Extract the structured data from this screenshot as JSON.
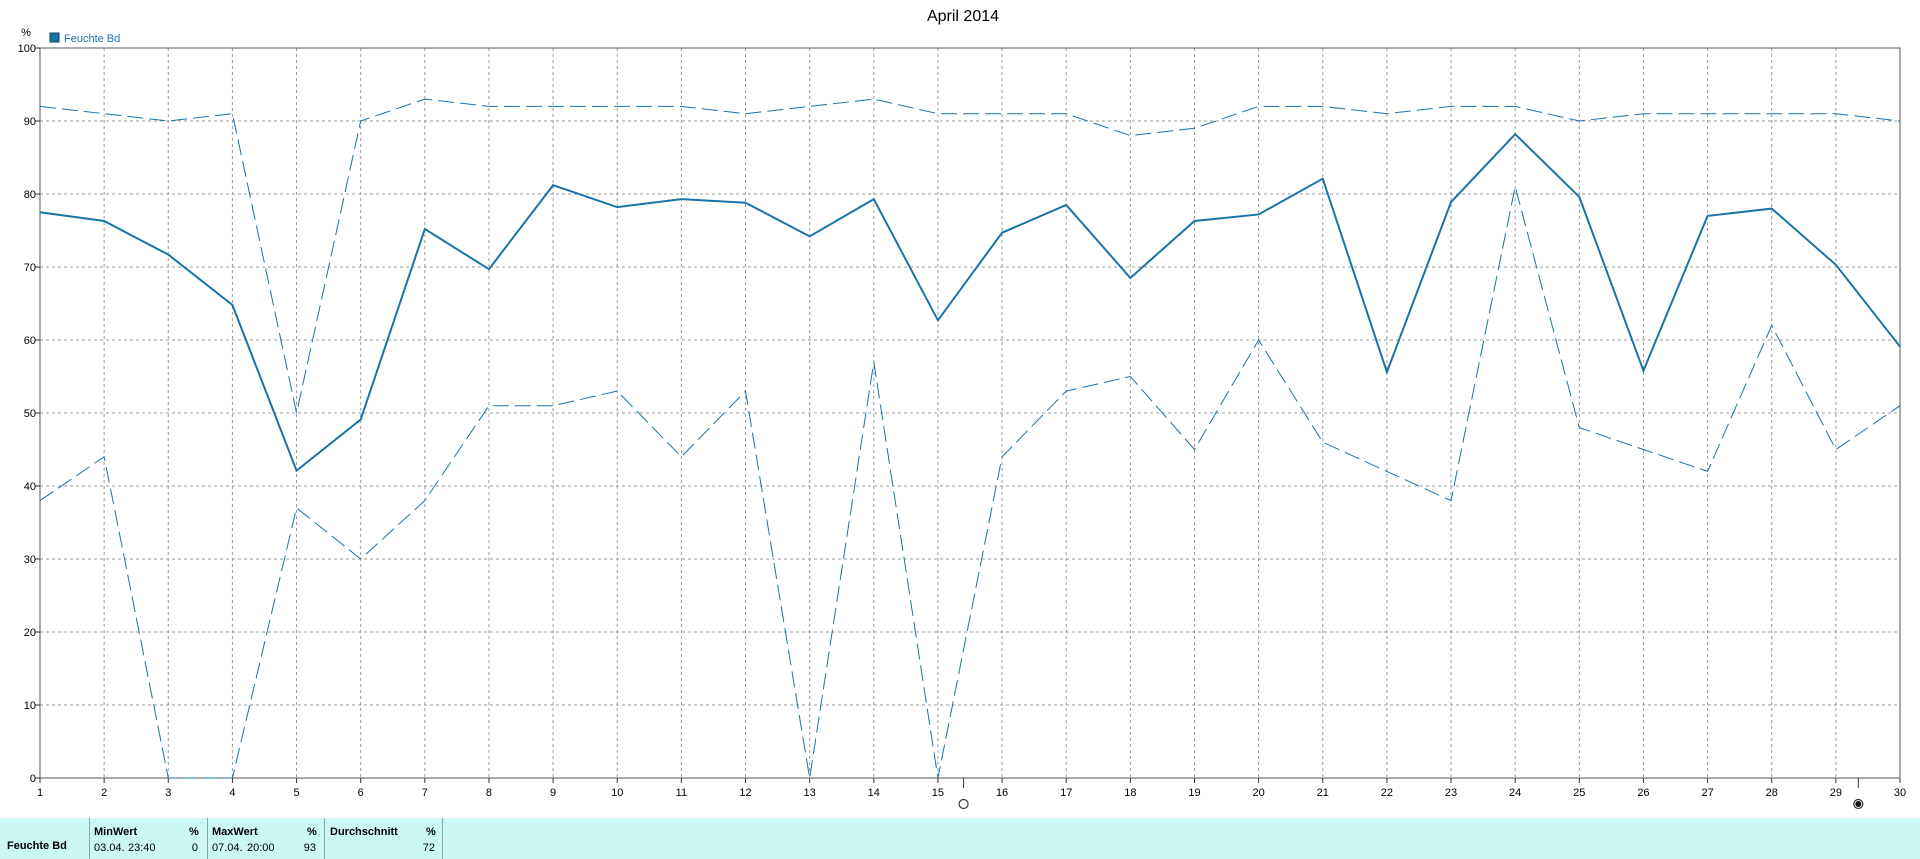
{
  "chart_data": {
    "type": "line",
    "title": "April 2014",
    "y_unit": "%",
    "ylim": [
      0,
      100
    ],
    "y_ticks": [
      0,
      10,
      20,
      30,
      40,
      50,
      60,
      70,
      80,
      90,
      100
    ],
    "x": [
      1,
      2,
      3,
      4,
      5,
      6,
      7,
      8,
      9,
      10,
      11,
      12,
      13,
      14,
      15,
      16,
      17,
      18,
      19,
      20,
      21,
      22,
      23,
      24,
      25,
      26,
      27,
      28,
      29,
      30
    ],
    "grid": true,
    "legend": {
      "position": "top-left",
      "label": "Feuchte Bd"
    },
    "colors": {
      "series": "#1a73a8"
    },
    "series": [
      {
        "name": "Feuchte Bd",
        "style": "solid",
        "values": [
          77.5,
          76.3,
          71.7,
          64.8,
          42.1,
          49.1,
          75.2,
          69.7,
          81.2,
          78.2,
          79.3,
          78.8,
          74.2,
          79.3,
          62.7,
          74.7,
          78.5,
          68.5,
          76.3,
          77.2,
          82.1,
          55.6,
          78.9,
          88.2,
          79.6,
          55.8,
          77.0,
          78.0,
          70.3,
          59.1
        ]
      },
      {
        "style": "dashed",
        "values": [
          92,
          91,
          90,
          91,
          50,
          90,
          93,
          92,
          92,
          92,
          92,
          91,
          92,
          93,
          91,
          91,
          91,
          88,
          89,
          92,
          92,
          91,
          92,
          92,
          90,
          91,
          91,
          91,
          91,
          90
        ]
      },
      {
        "style": "dashed",
        "values": [
          38,
          44,
          0,
          0,
          37,
          30,
          38,
          51,
          51,
          53,
          44,
          53,
          0,
          57,
          0,
          44,
          53,
          55,
          45,
          60,
          46,
          42,
          38,
          81,
          48,
          45,
          42,
          62,
          45,
          51
        ]
      }
    ],
    "x_markers": [
      {
        "x": 15.4,
        "symbol": "open-circle"
      },
      {
        "x": 29.35,
        "symbol": "filled-circle"
      }
    ]
  },
  "stats": {
    "row_label": "Feuchte Bd",
    "min": {
      "header": "MinWert",
      "unit": "%",
      "date": "03.04.",
      "time": "23:40",
      "value": "0"
    },
    "max": {
      "header": "MaxWert",
      "unit": "%",
      "date": "07.04.",
      "time": "20:00",
      "value": "93"
    },
    "avg": {
      "header": "Durchschnitt",
      "unit": "%",
      "value": "72"
    }
  }
}
